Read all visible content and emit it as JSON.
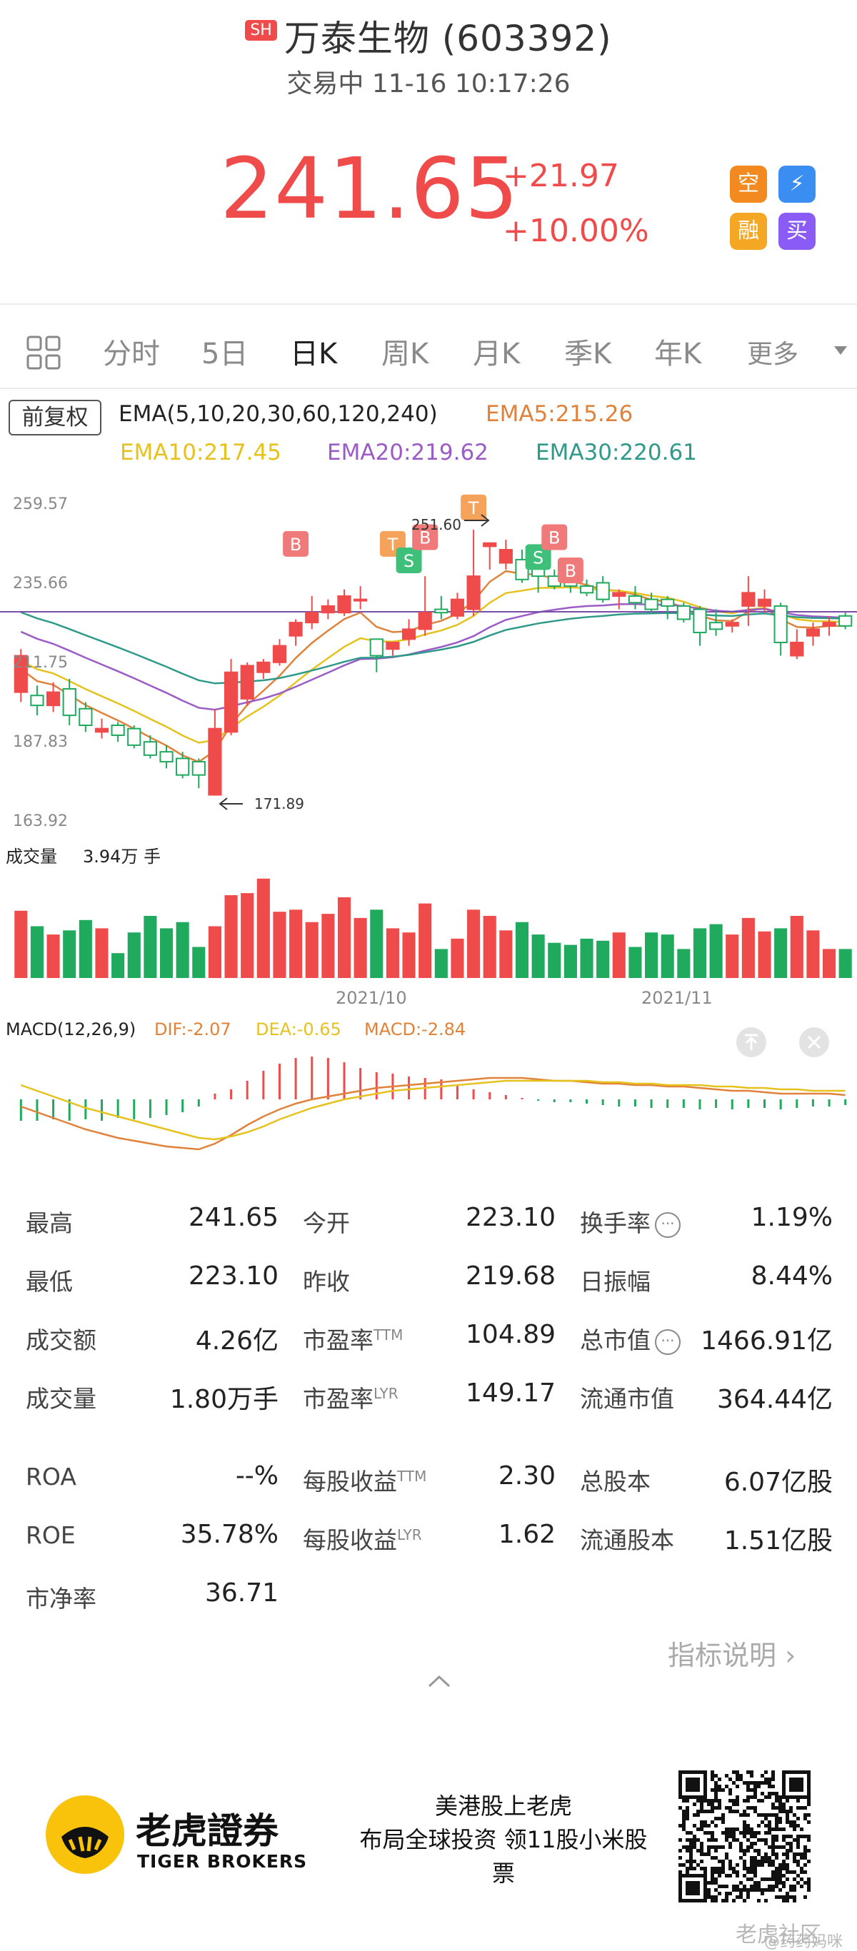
{
  "header": {
    "exchange_badge": "SH",
    "stock_title": "万泰生物 (603392)",
    "status": "交易中 11-16 10:17:26",
    "price": "241.65",
    "change": "+21.97",
    "change_pct": "+10.00%",
    "tags": [
      {
        "label": "空",
        "color": "#f28a1f"
      },
      {
        "label": "⚡",
        "color": "#3a8ef2"
      },
      {
        "label": "融",
        "color": "#f5a623"
      },
      {
        "label": "买",
        "color": "#8a5cf5"
      }
    ]
  },
  "tabs": [
    {
      "label": "分时"
    },
    {
      "label": "5日"
    },
    {
      "label": "日K"
    },
    {
      "label": "周K"
    },
    {
      "label": "月K"
    },
    {
      "label": "季K"
    },
    {
      "label": "年K"
    },
    {
      "label": "更多"
    }
  ],
  "active_tab": "日K",
  "kline": {
    "adjust_button": "前复权",
    "ema_params": "EMA(5,10,20,30,60,120,240)",
    "ema5": "EMA5:215.26",
    "ema10": "EMA10:217.45",
    "ema20": "EMA20:219.62",
    "ema30": "EMA30:220.61",
    "y_ticks": [
      "259.57",
      "235.66",
      "211.75",
      "187.83",
      "163.92"
    ],
    "high_label": "251.60",
    "low_label": "171.89",
    "markers": [
      "T",
      "B",
      "T",
      "S",
      "B",
      "S",
      "B",
      "B"
    ],
    "volume_title": "成交量",
    "volume_value": "3.94万 手",
    "dates": [
      "2021/10",
      "2021/11"
    ],
    "macd_params": "MACD(12,26,9)",
    "dif": "DIF:-2.07",
    "dea": "DEA:-0.65",
    "macd": "MACD:-2.84",
    "colors": {
      "up": "#f04b4b",
      "down": "#1faa5e",
      "ema5": "#e0823a",
      "ema10": "#e6c21e",
      "ema20": "#9b5cc7",
      "ema30": "#2f9a8a"
    }
  },
  "stats": {
    "rows": [
      [
        {
          "label": "最高",
          "value": "241.65"
        },
        {
          "label": "今开",
          "value": "223.10"
        },
        {
          "label": "换手率",
          "value": "1.19%"
        }
      ],
      [
        {
          "label": "最低",
          "value": "223.10"
        },
        {
          "label": "昨收",
          "value": "219.68"
        },
        {
          "label": "日振幅",
          "value": "8.44%"
        }
      ],
      [
        {
          "label": "成交额",
          "value": "4.26亿"
        },
        {
          "label": "市盈率",
          "sup": "TTM",
          "value": "104.89"
        },
        {
          "label": "总市值",
          "value": "1466.91亿"
        }
      ],
      [
        {
          "label": "成交量",
          "value": "1.80万手"
        },
        {
          "label": "市盈率",
          "sup": "LYR",
          "value": "149.17"
        },
        {
          "label": "流通市值",
          "value": "364.44亿"
        }
      ],
      [
        {
          "label": "ROA",
          "value": "--%"
        },
        {
          "label": "每股收益",
          "sup": "TTM",
          "value": "2.30"
        },
        {
          "label": "总股本",
          "value": "6.07亿股"
        }
      ],
      [
        {
          "label": "ROE",
          "value": "35.78%"
        },
        {
          "label": "每股收益",
          "sup": "LYR",
          "value": "1.62"
        },
        {
          "label": "流通股本",
          "value": "1.51亿股"
        }
      ],
      [
        {
          "label": "市净率",
          "value": "36.71"
        }
      ]
    ],
    "info_symbol": "···",
    "explain_link": "指标说明 ›"
  },
  "footer": {
    "brand_cn": "老虎證券",
    "brand_en": "TIGER BROKERS",
    "slogan_line1": "美港股上老虎",
    "slogan_line2": "布局全球投资 领11股小米股",
    "slogan_line3": "票",
    "watermark1": "老虎社区",
    "watermark2": "@药药妈咪"
  }
}
